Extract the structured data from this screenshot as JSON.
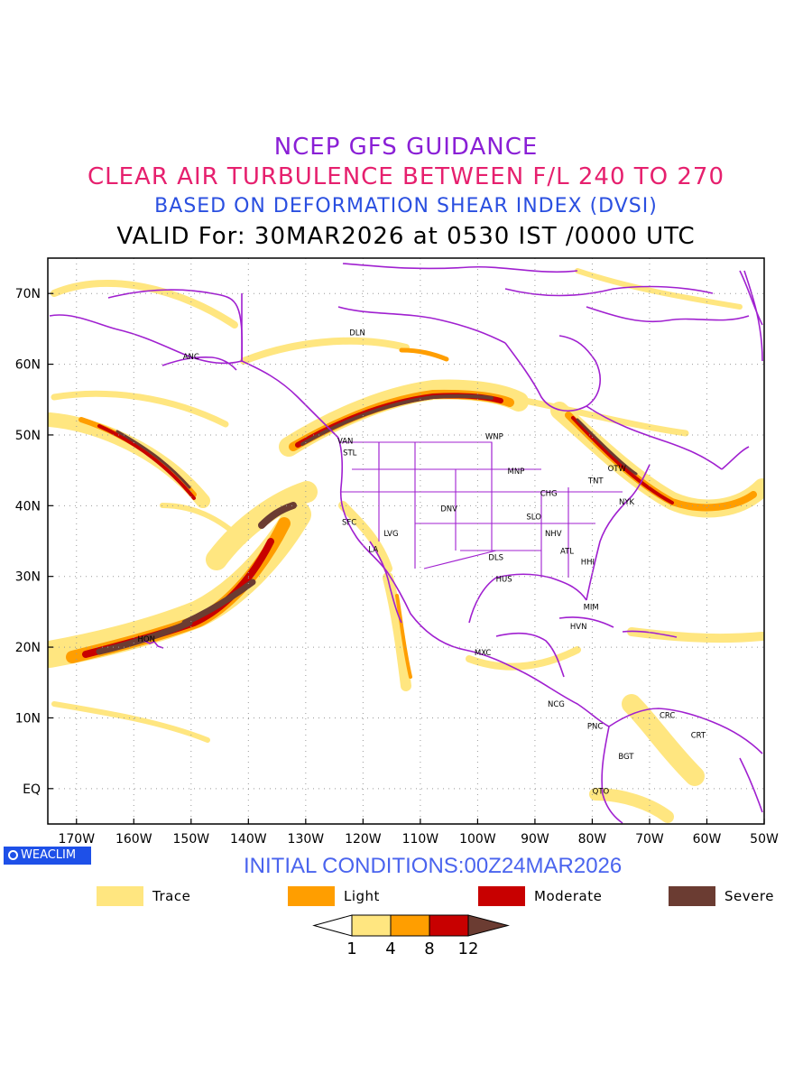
{
  "titles": {
    "line1": "NCEP GFS GUIDANCE",
    "line2": "CLEAR AIR TURBULENCE BETWEEN F/L 240 TO 270",
    "line3": "BASED ON DEFORMATION SHEAR INDEX (DVSI)",
    "line4": "VALID For: 30MAR2026 at 0530 IST /0000 UTC"
  },
  "map": {
    "lon_range": [
      -175,
      -50
    ],
    "lat_range": [
      -5,
      75
    ],
    "lat_ticks": [
      {
        "value": 70,
        "label": "70N"
      },
      {
        "value": 60,
        "label": "60N"
      },
      {
        "value": 50,
        "label": "50N"
      },
      {
        "value": 40,
        "label": "40N"
      },
      {
        "value": 30,
        "label": "30N"
      },
      {
        "value": 20,
        "label": "20N"
      },
      {
        "value": 10,
        "label": "10N"
      },
      {
        "value": 0,
        "label": "EQ"
      }
    ],
    "lon_ticks": [
      {
        "value": -170,
        "label": "170W"
      },
      {
        "value": -160,
        "label": "160W"
      },
      {
        "value": -150,
        "label": "150W"
      },
      {
        "value": -140,
        "label": "140W"
      },
      {
        "value": -130,
        "label": "130W"
      },
      {
        "value": -120,
        "label": "120W"
      },
      {
        "value": -110,
        "label": "110W"
      },
      {
        "value": -100,
        "label": "100W"
      },
      {
        "value": -90,
        "label": "90W"
      },
      {
        "value": -80,
        "label": "80W"
      },
      {
        "value": -70,
        "label": "70W"
      },
      {
        "value": -60,
        "label": "60W"
      },
      {
        "value": -50,
        "label": "50W"
      }
    ],
    "stations": [
      {
        "code": "DLN",
        "lon": -121,
        "lat": 64.6
      },
      {
        "code": "ANC",
        "lon": -150,
        "lat": 61.2
      },
      {
        "code": "VAN",
        "lon": -123.1,
        "lat": 49.3
      },
      {
        "code": "STL",
        "lon": -122.3,
        "lat": 47.6
      },
      {
        "code": "WNP",
        "lon": -97.1,
        "lat": 49.9
      },
      {
        "code": "MNP",
        "lon": -93.3,
        "lat": 45
      },
      {
        "code": "OTW",
        "lon": -75.7,
        "lat": 45.4
      },
      {
        "code": "TNT",
        "lon": -79.4,
        "lat": 43.7
      },
      {
        "code": "CHG",
        "lon": -87.6,
        "lat": 41.9
      },
      {
        "code": "NYK",
        "lon": -74,
        "lat": 40.7
      },
      {
        "code": "DNV",
        "lon": -105,
        "lat": 39.7
      },
      {
        "code": "SFC",
        "lon": -122.4,
        "lat": 37.8
      },
      {
        "code": "SLO",
        "lon": -90.2,
        "lat": 38.6
      },
      {
        "code": "LVG",
        "lon": -115.1,
        "lat": 36.2
      },
      {
        "code": "NHV",
        "lon": -86.8,
        "lat": 36.2
      },
      {
        "code": "LA",
        "lon": -118.2,
        "lat": 34
      },
      {
        "code": "ATL",
        "lon": -84.4,
        "lat": 33.7
      },
      {
        "code": "DLS",
        "lon": -96.8,
        "lat": 32.8
      },
      {
        "code": "HHI",
        "lon": -80.8,
        "lat": 32.2
      },
      {
        "code": "HUS",
        "lon": -95.4,
        "lat": 29.8
      },
      {
        "code": "MIM",
        "lon": -80.2,
        "lat": 25.8
      },
      {
        "code": "HVN",
        "lon": -82.4,
        "lat": 23.1
      },
      {
        "code": "HON",
        "lon": -157.8,
        "lat": 21.3
      },
      {
        "code": "MXC",
        "lon": -99.1,
        "lat": 19.4
      },
      {
        "code": "NCG",
        "lon": -86.3,
        "lat": 12.1
      },
      {
        "code": "CRC",
        "lon": -66.9,
        "lat": 10.5
      },
      {
        "code": "PNC",
        "lon": -79.5,
        "lat": 9
      },
      {
        "code": "CRT",
        "lon": -61.5,
        "lat": 7.7
      },
      {
        "code": "BGT",
        "lon": -74.1,
        "lat": 4.7
      },
      {
        "code": "QTO",
        "lon": -78.5,
        "lat": -0.2
      }
    ]
  },
  "logo": {
    "label": "WEACLIM"
  },
  "initial_conditions": "INITIAL CONDITIONS:00Z24MAR2026",
  "legend": [
    {
      "label": "Trace",
      "color": "#ffe680"
    },
    {
      "label": "Light",
      "color": "#ff9e00"
    },
    {
      "label": "Moderate",
      "color": "#c80000"
    },
    {
      "label": "Severe",
      "color": "#6b3c32"
    }
  ],
  "colorbar": {
    "levels": [
      "1",
      "4",
      "8",
      "12"
    ],
    "colors": [
      "#ffffff",
      "#ffe680",
      "#ff9e00",
      "#c80000",
      "#6b3c32"
    ]
  },
  "colors": {
    "coast": "#a020d0",
    "trace": "#ffe680",
    "light": "#ff9e00",
    "moderate": "#c80000",
    "severe": "#6b3c32"
  }
}
